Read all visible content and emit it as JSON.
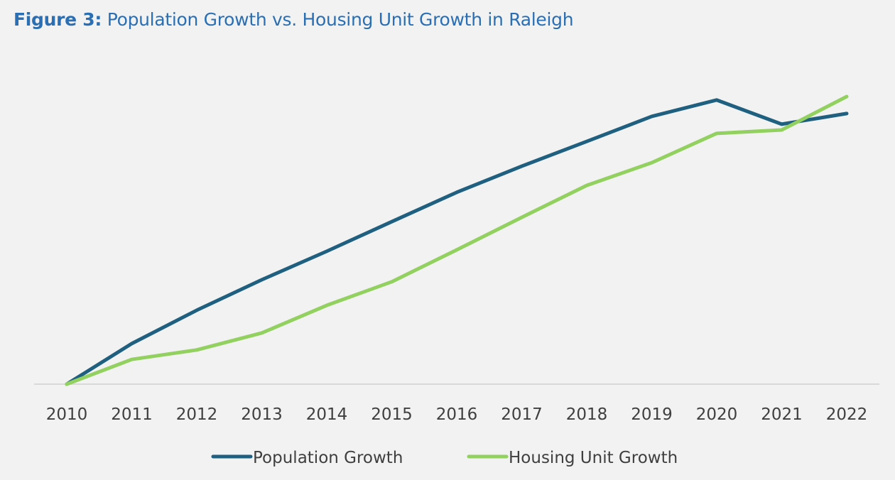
{
  "figure": {
    "label": "Figure 3:",
    "title": "Population Growth vs. Housing Unit Growth in Raleigh"
  },
  "chart_data": {
    "type": "line",
    "title": "Figure 3: Population Growth vs. Housing Unit Growth in Raleigh",
    "xlabel": "",
    "ylabel": "",
    "x": [
      "2010",
      "2011",
      "2012",
      "2013",
      "2014",
      "2015",
      "2016",
      "2017",
      "2018",
      "2019",
      "2020",
      "2021",
      "2022"
    ],
    "ylim": [
      0,
      100
    ],
    "y_units": "relative index (no y-axis labels shown; 2010 = 0)",
    "grid": false,
    "legend_position": "bottom",
    "series": [
      {
        "name": "Population Growth",
        "color": "#1f5f80",
        "values": [
          0,
          14.1,
          25.7,
          36.3,
          46.2,
          56.5,
          66.7,
          75.8,
          84.4,
          93.1,
          98.8,
          90.4,
          94.1
        ]
      },
      {
        "name": "Housing Unit Growth",
        "color": "#92d05f",
        "values": [
          0,
          8.6,
          11.9,
          17.8,
          27.4,
          35.6,
          46.7,
          58.0,
          69.1,
          77.0,
          87.2,
          88.4,
          100
        ]
      }
    ]
  }
}
